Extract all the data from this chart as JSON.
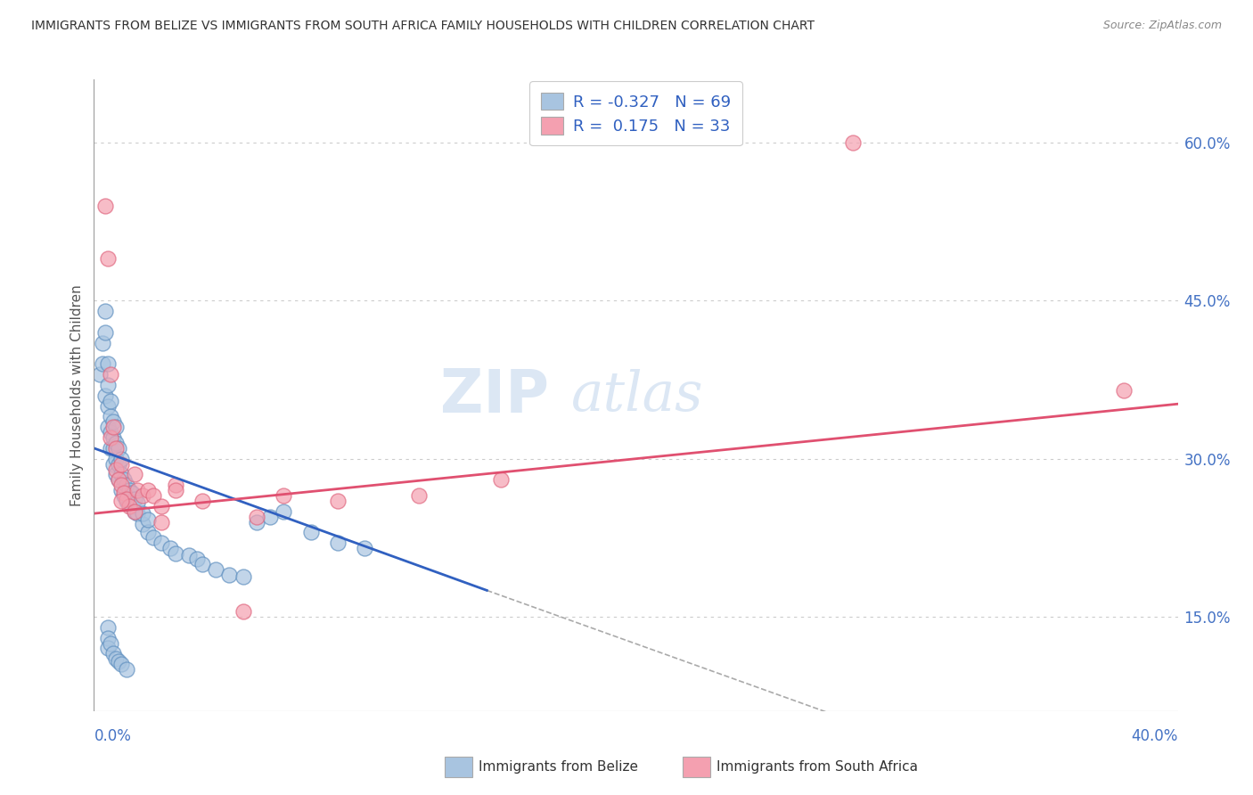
{
  "title": "IMMIGRANTS FROM BELIZE VS IMMIGRANTS FROM SOUTH AFRICA FAMILY HOUSEHOLDS WITH CHILDREN CORRELATION CHART",
  "source": "Source: ZipAtlas.com",
  "right_yticks": [
    "15.0%",
    "30.0%",
    "45.0%",
    "60.0%"
  ],
  "right_ytick_vals": [
    0.15,
    0.3,
    0.45,
    0.6
  ],
  "legend_blue_label_prefix": "R = ",
  "legend_blue_r": "-0.327",
  "legend_blue_n_prefix": "  N = ",
  "legend_blue_n": "69",
  "legend_pink_label_prefix": "R =  ",
  "legend_pink_r": "0.175",
  "legend_pink_n_prefix": "  N = ",
  "legend_pink_n": "33",
  "legend_belize": "Immigrants from Belize",
  "legend_sa": "Immigrants from South Africa",
  "ylabel": "Family Households with Children",
  "blue_color": "#a8c4e0",
  "blue_edge_color": "#6090c0",
  "pink_color": "#f4a0b0",
  "pink_edge_color": "#e06880",
  "blue_line_color": "#3060c0",
  "pink_line_color": "#e05070",
  "dashed_line_color": "#aaaaaa",
  "xlim": [
    0.0,
    0.4
  ],
  "ylim": [
    0.06,
    0.66
  ],
  "blue_scatter_x": [
    0.002,
    0.003,
    0.003,
    0.004,
    0.004,
    0.004,
    0.005,
    0.005,
    0.005,
    0.005,
    0.006,
    0.006,
    0.006,
    0.006,
    0.007,
    0.007,
    0.007,
    0.007,
    0.008,
    0.008,
    0.008,
    0.008,
    0.009,
    0.009,
    0.009,
    0.01,
    0.01,
    0.01,
    0.011,
    0.011,
    0.012,
    0.012,
    0.013,
    0.013,
    0.014,
    0.014,
    0.015,
    0.015,
    0.016,
    0.016,
    0.018,
    0.018,
    0.02,
    0.02,
    0.022,
    0.025,
    0.028,
    0.03,
    0.035,
    0.038,
    0.04,
    0.045,
    0.05,
    0.055,
    0.06,
    0.065,
    0.07,
    0.08,
    0.09,
    0.1,
    0.005,
    0.005,
    0.005,
    0.006,
    0.007,
    0.008,
    0.009,
    0.01,
    0.012
  ],
  "blue_scatter_y": [
    0.38,
    0.41,
    0.39,
    0.36,
    0.42,
    0.44,
    0.33,
    0.35,
    0.37,
    0.39,
    0.31,
    0.325,
    0.34,
    0.355,
    0.295,
    0.31,
    0.32,
    0.335,
    0.285,
    0.3,
    0.315,
    0.33,
    0.28,
    0.295,
    0.31,
    0.27,
    0.285,
    0.3,
    0.265,
    0.28,
    0.26,
    0.275,
    0.258,
    0.27,
    0.255,
    0.268,
    0.25,
    0.262,
    0.248,
    0.258,
    0.238,
    0.248,
    0.23,
    0.242,
    0.225,
    0.22,
    0.215,
    0.21,
    0.208,
    0.205,
    0.2,
    0.195,
    0.19,
    0.188,
    0.24,
    0.245,
    0.25,
    0.23,
    0.22,
    0.215,
    0.14,
    0.13,
    0.12,
    0.125,
    0.115,
    0.11,
    0.108,
    0.105,
    0.1
  ],
  "pink_scatter_x": [
    0.004,
    0.005,
    0.006,
    0.006,
    0.007,
    0.008,
    0.008,
    0.009,
    0.01,
    0.01,
    0.011,
    0.012,
    0.013,
    0.015,
    0.016,
    0.018,
    0.02,
    0.022,
    0.025,
    0.03,
    0.04,
    0.055,
    0.07,
    0.09,
    0.12,
    0.15,
    0.01,
    0.015,
    0.025,
    0.03,
    0.06,
    0.28,
    0.38
  ],
  "pink_scatter_y": [
    0.54,
    0.49,
    0.38,
    0.32,
    0.33,
    0.29,
    0.31,
    0.28,
    0.275,
    0.295,
    0.268,
    0.262,
    0.255,
    0.285,
    0.27,
    0.265,
    0.27,
    0.265,
    0.255,
    0.275,
    0.26,
    0.155,
    0.265,
    0.26,
    0.265,
    0.28,
    0.26,
    0.25,
    0.24,
    0.27,
    0.245,
    0.6,
    0.365
  ],
  "blue_line_x": [
    0.0,
    0.145
  ],
  "blue_line_y": [
    0.31,
    0.175
  ],
  "dashed_line_x": [
    0.145,
    0.4
  ],
  "dashed_line_y": [
    0.175,
    -0.06
  ],
  "pink_line_x": [
    0.0,
    0.4
  ],
  "pink_line_y": [
    0.248,
    0.352
  ],
  "watermark_text": "ZIP",
  "watermark_text2": "atlas",
  "bg_color": "#ffffff"
}
